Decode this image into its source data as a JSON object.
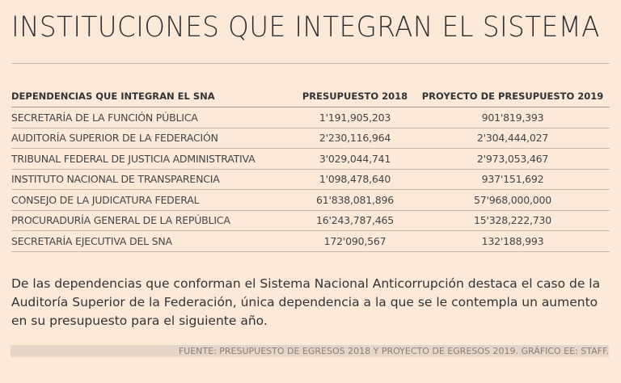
{
  "title": "INSTITUCIONES QUE INTEGRAN EL SISTEMA",
  "table": {
    "headers": [
      "DEPENDENCIAS QUE INTEGRAN EL SNA",
      "PRESUPUESTO 2018",
      "PROYECTO DE PRESUPUESTO 2019"
    ],
    "rows": [
      [
        "SECRETARÍA DE LA FUNCIÓN PÚBLICA",
        "1'191,905,203",
        "901'819,393"
      ],
      [
        "AUDITORÍA SUPERIOR DE LA FEDERACIÓN",
        "2'230,116,964",
        "2'304,444,027"
      ],
      [
        "TRIBUNAL FEDERAL DE JUSTICIA ADMINISTRATIVA",
        "3'029,044,741",
        "2'973,053,467"
      ],
      [
        "INSTITUTO NACIONAL DE TRANSPARENCIA",
        "1'098,478,640",
        "937'151,692"
      ],
      [
        "CONSEJO DE LA JUDICATURA FEDERAL",
        "61'838,081,896",
        "57'968,000,000"
      ],
      [
        "PROCURADURÍA GENERAL DE LA REPÚBLICA",
        "16'243,787,465",
        "15'328,222,730"
      ],
      [
        "SECRETARÍA EJECUTIVA DEL SNA",
        "172'090,567",
        "132'188,993"
      ]
    ]
  },
  "paragraph": "De las dependencias que conforman el Sistema Nacional Anticorrupción destaca el caso de la Auditoría Superior de la Federación, única dependencia a la que se le contempla un aumento en su presupuesto para el siguiente año.",
  "source": "FUENTE: PRESUPUESTO DE EGRESOS 2018 Y PROYECTO DE EGRESOS 2019. GRÁFICO EE: STAFF."
}
